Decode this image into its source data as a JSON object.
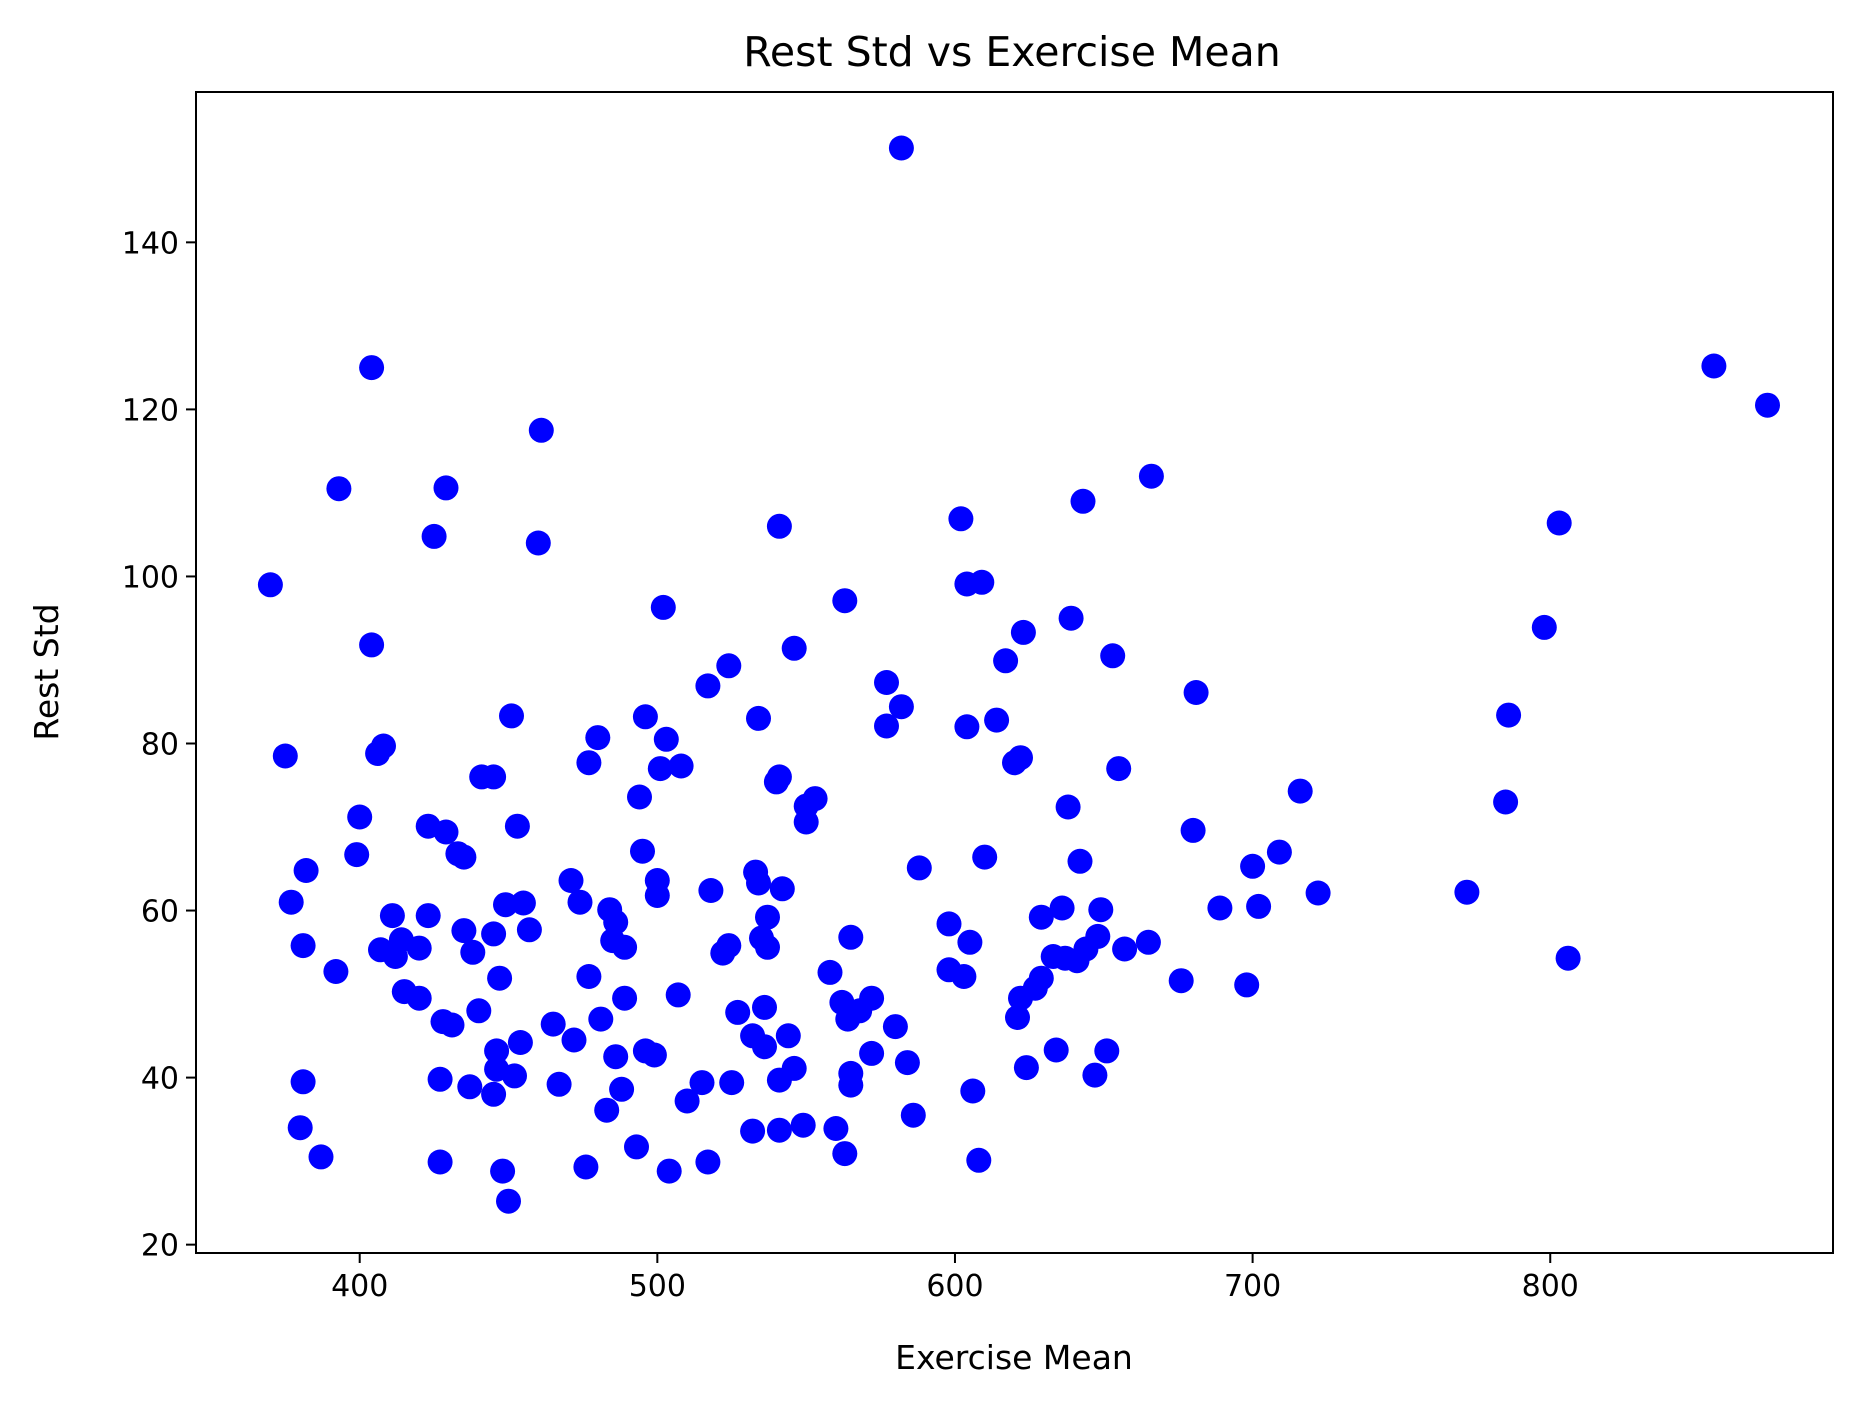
{
  "chart_data": {
    "type": "scatter",
    "title": "Rest Std vs Exercise Mean",
    "xlabel": "Exercise Mean",
    "ylabel": "Rest Std",
    "xlim": [
      345,
      895
    ],
    "ylim": [
      19,
      158
    ],
    "xticks": [
      400,
      500,
      600,
      700,
      800
    ],
    "yticks": [
      20,
      40,
      60,
      80,
      100,
      120,
      140
    ],
    "grid": false,
    "marker_color": "#0000ff",
    "series": [
      {
        "name": "points",
        "points": [
          [
            370,
            99
          ],
          [
            375,
            78.5
          ],
          [
            377,
            61
          ],
          [
            380,
            34
          ],
          [
            381,
            39.5
          ],
          [
            381,
            55.8
          ],
          [
            382,
            64.8
          ],
          [
            387,
            30.5
          ],
          [
            392,
            52.7
          ],
          [
            393,
            110.5
          ],
          [
            399,
            66.7
          ],
          [
            400,
            71.2
          ],
          [
            404,
            125
          ],
          [
            404,
            91.8
          ],
          [
            406,
            78.8
          ],
          [
            407,
            55.3
          ],
          [
            408,
            79.7
          ],
          [
            411,
            59.4
          ],
          [
            412,
            54.5
          ],
          [
            414,
            56.5
          ],
          [
            415,
            50.3
          ],
          [
            420,
            55.5
          ],
          [
            420,
            49.5
          ],
          [
            423,
            59.4
          ],
          [
            423,
            70.1
          ],
          [
            425,
            104.8
          ],
          [
            427,
            29.9
          ],
          [
            427,
            39.8
          ],
          [
            428,
            46.7
          ],
          [
            429,
            69.4
          ],
          [
            429,
            110.6
          ],
          [
            431,
            46.3
          ],
          [
            433,
            66.8
          ],
          [
            435,
            66.4
          ],
          [
            435,
            57.6
          ],
          [
            437,
            38.9
          ],
          [
            438,
            55
          ],
          [
            440,
            48
          ],
          [
            441,
            76
          ],
          [
            445,
            76
          ],
          [
            445,
            57.2
          ],
          [
            445,
            38
          ],
          [
            446,
            41
          ],
          [
            446,
            43.2
          ],
          [
            447,
            51.9
          ],
          [
            448,
            28.8
          ],
          [
            449,
            60.7
          ],
          [
            450,
            25.2
          ],
          [
            451,
            83.3
          ],
          [
            452,
            40.2
          ],
          [
            453,
            70.1
          ],
          [
            454,
            44.2
          ],
          [
            455,
            60.9
          ],
          [
            457,
            57.7
          ],
          [
            460,
            104
          ],
          [
            461,
            117.5
          ],
          [
            465,
            46.4
          ],
          [
            467,
            39.2
          ],
          [
            471,
            63.6
          ],
          [
            472,
            44.5
          ],
          [
            474,
            61
          ],
          [
            476,
            29.3
          ],
          [
            477,
            52.1
          ],
          [
            477,
            77.7
          ],
          [
            480,
            80.7
          ],
          [
            481,
            47
          ],
          [
            483,
            36.1
          ],
          [
            484,
            60.1
          ],
          [
            485,
            56.4
          ],
          [
            486,
            42.5
          ],
          [
            486,
            58.6
          ],
          [
            488,
            38.6
          ],
          [
            489,
            49.5
          ],
          [
            489,
            55.6
          ],
          [
            493,
            31.7
          ],
          [
            494,
            73.6
          ],
          [
            495,
            67.1
          ],
          [
            496,
            83.2
          ],
          [
            496,
            43.2
          ],
          [
            499,
            42.7
          ],
          [
            500,
            61.8
          ],
          [
            500,
            63.6
          ],
          [
            501,
            77
          ],
          [
            502,
            96.3
          ],
          [
            503,
            80.5
          ],
          [
            504,
            28.8
          ],
          [
            507,
            49.9
          ],
          [
            508,
            77.3
          ],
          [
            510,
            37.2
          ],
          [
            515,
            39.4
          ],
          [
            517,
            29.9
          ],
          [
            517,
            86.9
          ],
          [
            518,
            62.4
          ],
          [
            522,
            54.9
          ],
          [
            524,
            89.3
          ],
          [
            524,
            55.8
          ],
          [
            525,
            39.4
          ],
          [
            527,
            47.8
          ],
          [
            532,
            33.6
          ],
          [
            532,
            45
          ],
          [
            533,
            64.6
          ],
          [
            534,
            83
          ],
          [
            534,
            63.3
          ],
          [
            535,
            56.7
          ],
          [
            536,
            48.4
          ],
          [
            536,
            43.7
          ],
          [
            537,
            59.2
          ],
          [
            537,
            55.6
          ],
          [
            540,
            75.4
          ],
          [
            541,
            76
          ],
          [
            541,
            33.7
          ],
          [
            541,
            106
          ],
          [
            541,
            39.7
          ],
          [
            542,
            62.6
          ],
          [
            544,
            45
          ],
          [
            546,
            41.1
          ],
          [
            546,
            91.4
          ],
          [
            549,
            34.3
          ],
          [
            550,
            72.5
          ],
          [
            550,
            70.6
          ],
          [
            553,
            73.4
          ],
          [
            558,
            52.6
          ],
          [
            560,
            33.9
          ],
          [
            562,
            49
          ],
          [
            563,
            30.9
          ],
          [
            563,
            97.1
          ],
          [
            564,
            47
          ],
          [
            565,
            56.8
          ],
          [
            565,
            39.1
          ],
          [
            565,
            40.5
          ],
          [
            568,
            48
          ],
          [
            572,
            49.5
          ],
          [
            572,
            42.9
          ],
          [
            577,
            87.3
          ],
          [
            577,
            82.1
          ],
          [
            580,
            46.1
          ],
          [
            582,
            84.4
          ],
          [
            582,
            151.3
          ],
          [
            584,
            41.8
          ],
          [
            586,
            35.5
          ],
          [
            588,
            65.1
          ],
          [
            598,
            58.4
          ],
          [
            598,
            52.9
          ],
          [
            602,
            106.9
          ],
          [
            603,
            52.1
          ],
          [
            604,
            99.1
          ],
          [
            604,
            82
          ],
          [
            605,
            56.2
          ],
          [
            606,
            38.4
          ],
          [
            608,
            30.1
          ],
          [
            609,
            99.3
          ],
          [
            610,
            66.4
          ],
          [
            614,
            82.8
          ],
          [
            617,
            89.9
          ],
          [
            620,
            77.7
          ],
          [
            621,
            47.2
          ],
          [
            622,
            49.5
          ],
          [
            622,
            78.3
          ],
          [
            623,
            93.3
          ],
          [
            624,
            41.2
          ],
          [
            627,
            50.7
          ],
          [
            629,
            59.2
          ],
          [
            629,
            51.9
          ],
          [
            633,
            54.5
          ],
          [
            634,
            43.3
          ],
          [
            636,
            60.3
          ],
          [
            637,
            54.3
          ],
          [
            638,
            72.4
          ],
          [
            639,
            95
          ],
          [
            641,
            54
          ],
          [
            642,
            65.9
          ],
          [
            643,
            109
          ],
          [
            644,
            55.4
          ],
          [
            647,
            40.3
          ],
          [
            648,
            56.9
          ],
          [
            649,
            60.1
          ],
          [
            651,
            43.2
          ],
          [
            653,
            90.5
          ],
          [
            655,
            77
          ],
          [
            657,
            55.4
          ],
          [
            665,
            56.2
          ],
          [
            666,
            112
          ],
          [
            676,
            51.6
          ],
          [
            680,
            69.6
          ],
          [
            681,
            86.1
          ],
          [
            689,
            60.3
          ],
          [
            698,
            51.1
          ],
          [
            700,
            65.3
          ],
          [
            702,
            60.5
          ],
          [
            709,
            67
          ],
          [
            716,
            74.3
          ],
          [
            722,
            62.1
          ],
          [
            772,
            62.2
          ],
          [
            785,
            73
          ],
          [
            786,
            83.4
          ],
          [
            798,
            93.9
          ],
          [
            803,
            106.4
          ],
          [
            806,
            54.3
          ],
          [
            855,
            125.2
          ],
          [
            873,
            120.5
          ]
        ]
      }
    ]
  }
}
